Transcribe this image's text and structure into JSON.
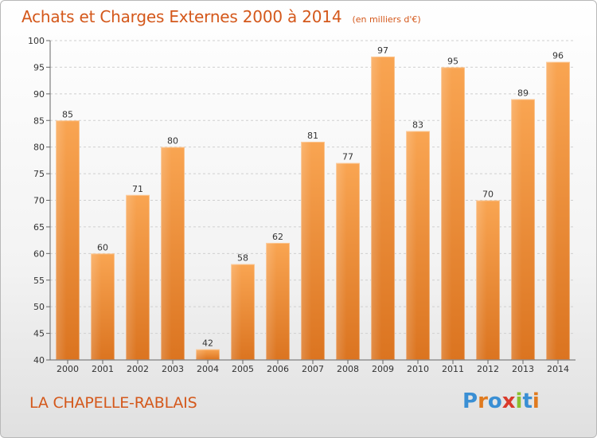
{
  "header": {
    "title": "Achats et Charges Externes 2000 à 2014",
    "subtitle": "(en milliers d'€)"
  },
  "footer": {
    "commune": "LA CHAPELLE-RABLAIS",
    "logo_text": "Proxiti",
    "logo_colors": [
      "#3a8fd4",
      "#e07a1f",
      "#3a8fd4",
      "#d93a2b",
      "#8bbf2e",
      "#3a8fd4",
      "#e07a1f"
    ]
  },
  "chart_data": {
    "type": "bar",
    "categories": [
      "2000",
      "2001",
      "2002",
      "2003",
      "2004",
      "2005",
      "2006",
      "2007",
      "2008",
      "2009",
      "2010",
      "2011",
      "2012",
      "2013",
      "2014"
    ],
    "values": [
      85,
      60,
      71,
      80,
      42,
      58,
      62,
      81,
      77,
      97,
      83,
      95,
      70,
      89,
      96
    ],
    "title": "Achats et Charges Externes 2000 à 2014",
    "xlabel": "",
    "ylabel": "",
    "ylim": [
      40,
      100
    ],
    "yticks": [
      40,
      45,
      50,
      55,
      60,
      65,
      70,
      75,
      80,
      85,
      90,
      95,
      100
    ],
    "grid": true,
    "bar_color": "#f08a2c",
    "bar_color_light": "#f8ab5f",
    "bar_color_dark": "#d9721a"
  }
}
